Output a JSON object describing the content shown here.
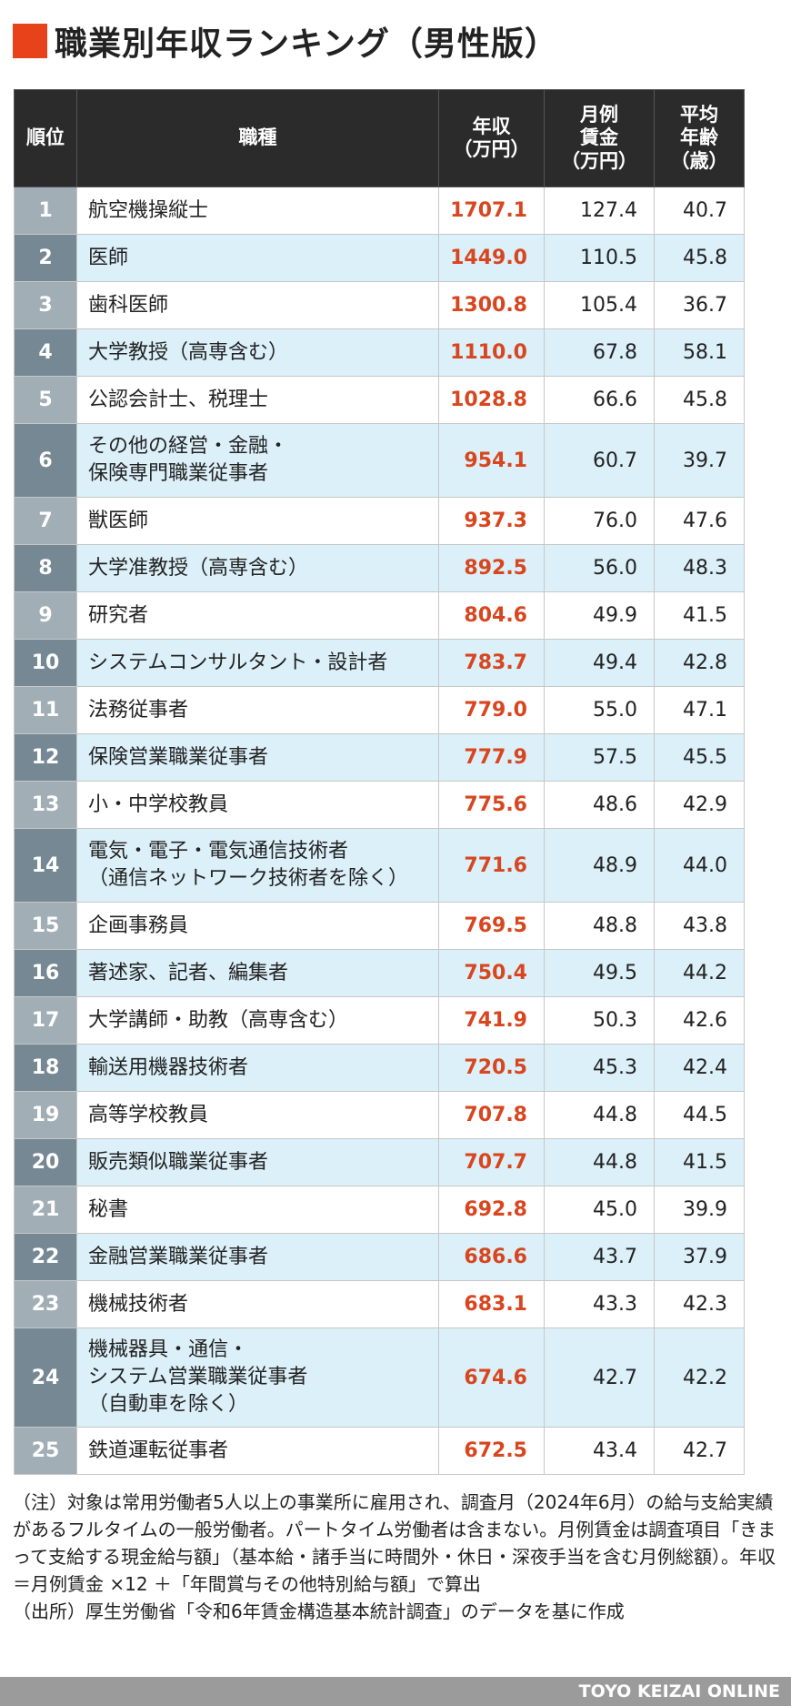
{
  "title": "職業別年収ランキング（男性版）",
  "table": {
    "headers": {
      "rank": "順位",
      "job": "職種",
      "income": [
        "年収",
        "（万円）"
      ],
      "wage": [
        "月例",
        "賃金",
        "（万円）"
      ],
      "age": [
        "平均",
        "年齢",
        "（歳）"
      ]
    },
    "rows": [
      {
        "rank": "1",
        "job": [
          "航空機操縦士"
        ],
        "income": "1707.1",
        "wage": "127.4",
        "age": "40.7"
      },
      {
        "rank": "2",
        "job": [
          "医師"
        ],
        "income": "1449.0",
        "wage": "110.5",
        "age": "45.8"
      },
      {
        "rank": "3",
        "job": [
          "歯科医師"
        ],
        "income": "1300.8",
        "wage": "105.4",
        "age": "36.7"
      },
      {
        "rank": "4",
        "job": [
          "大学教授（高専含む）"
        ],
        "income": "1110.0",
        "wage": "67.8",
        "age": "58.1"
      },
      {
        "rank": "5",
        "job": [
          "公認会計士、税理士"
        ],
        "income": "1028.8",
        "wage": "66.6",
        "age": "45.8"
      },
      {
        "rank": "6",
        "job": [
          "その他の経営・金融・",
          "保険専門職業従事者"
        ],
        "income": "954.1",
        "wage": "60.7",
        "age": "39.7"
      },
      {
        "rank": "7",
        "job": [
          "獣医師"
        ],
        "income": "937.3",
        "wage": "76.0",
        "age": "47.6"
      },
      {
        "rank": "8",
        "job": [
          "大学准教授（高専含む）"
        ],
        "income": "892.5",
        "wage": "56.0",
        "age": "48.3"
      },
      {
        "rank": "9",
        "job": [
          "研究者"
        ],
        "income": "804.6",
        "wage": "49.9",
        "age": "41.5"
      },
      {
        "rank": "10",
        "job": [
          "システムコンサルタント・設計者"
        ],
        "income": "783.7",
        "wage": "49.4",
        "age": "42.8"
      },
      {
        "rank": "11",
        "job": [
          "法務従事者"
        ],
        "income": "779.0",
        "wage": "55.0",
        "age": "47.1"
      },
      {
        "rank": "12",
        "job": [
          "保険営業職業従事者"
        ],
        "income": "777.9",
        "wage": "57.5",
        "age": "45.5"
      },
      {
        "rank": "13",
        "job": [
          "小・中学校教員"
        ],
        "income": "775.6",
        "wage": "48.6",
        "age": "42.9"
      },
      {
        "rank": "14",
        "job": [
          "電気・電子・電気通信技術者",
          "（通信ネットワーク技術者を除く）"
        ],
        "income": "771.6",
        "wage": "48.9",
        "age": "44.0"
      },
      {
        "rank": "15",
        "job": [
          "企画事務員"
        ],
        "income": "769.5",
        "wage": "48.8",
        "age": "43.8"
      },
      {
        "rank": "16",
        "job": [
          "著述家、記者、編集者"
        ],
        "income": "750.4",
        "wage": "49.5",
        "age": "44.2"
      },
      {
        "rank": "17",
        "job": [
          "大学講師・助教（高専含む）"
        ],
        "income": "741.9",
        "wage": "50.3",
        "age": "42.6"
      },
      {
        "rank": "18",
        "job": [
          "輸送用機器技術者"
        ],
        "income": "720.5",
        "wage": "45.3",
        "age": "42.4"
      },
      {
        "rank": "19",
        "job": [
          "高等学校教員"
        ],
        "income": "707.8",
        "wage": "44.8",
        "age": "44.5"
      },
      {
        "rank": "20",
        "job": [
          "販売類似職業従事者"
        ],
        "income": "707.7",
        "wage": "44.8",
        "age": "41.5"
      },
      {
        "rank": "21",
        "job": [
          "秘書"
        ],
        "income": "692.8",
        "wage": "45.0",
        "age": "39.9"
      },
      {
        "rank": "22",
        "job": [
          "金融営業職業従事者"
        ],
        "income": "686.6",
        "wage": "43.7",
        "age": "37.9"
      },
      {
        "rank": "23",
        "job": [
          "機械技術者"
        ],
        "income": "683.1",
        "wage": "43.3",
        "age": "42.3"
      },
      {
        "rank": "24",
        "job": [
          "機械器具・通信・",
          "システム営業職業従事者",
          "（自動車を除く）"
        ],
        "income": "674.6",
        "wage": "42.7",
        "age": "42.2"
      },
      {
        "rank": "25",
        "job": [
          "鉄道運転従事者"
        ],
        "income": "672.5",
        "wage": "43.4",
        "age": "42.7"
      }
    ]
  },
  "notes": [
    "（注）対象は常用労働者5人以上の事業所に雇用され、調査月（2024年6月）の給与支給実績があるフルタイムの一般労働者。パートタイム労働者は含まない。月例賃金は調査項目「きまって支給する現金給与額」（基本給・諸手当に時間外・休日・深夜手当を含む月例総額）。年収＝月例賃金 ×12 ＋「年間賞与その他特別給与額」で算出",
    "（出所）厚生労働省「令和6年賃金構造基本統計調査」のデータを基に作成"
  ],
  "footer": "TOYO KEIZAI ONLINE",
  "colors": {
    "accent": "#e8421b",
    "income_text": "#d8461f",
    "header_bg": "#2b2b2b",
    "rank_light": "#a1aeb6",
    "rank_dark": "#758894",
    "row_alt": "#dcf0f9"
  }
}
